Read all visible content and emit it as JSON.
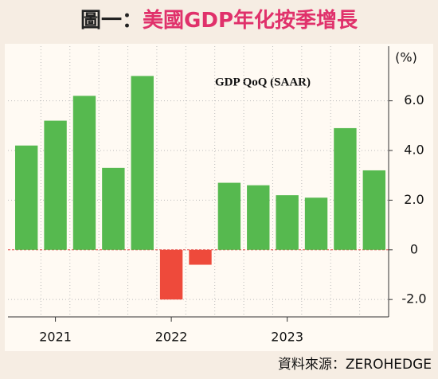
{
  "chart_data": {
    "type": "bar",
    "figure_label": "圖一：",
    "title": "美國GDP年化按季增長",
    "subtitle": "GDP QoQ (SAAR)",
    "y_unit": "(%)",
    "source": "資料來源：ZEROHEDGE",
    "categories": [
      null,
      "2021",
      null,
      null,
      null,
      "2022",
      null,
      null,
      null,
      "2023",
      null,
      null,
      null
    ],
    "values": [
      4.2,
      5.2,
      6.2,
      3.3,
      7.0,
      -2.0,
      -0.6,
      2.7,
      2.6,
      2.2,
      2.1,
      4.9,
      3.2
    ],
    "color": "#56b94f",
    "negative_color": "#ee4a3b",
    "ylim": [
      -2.7,
      8.2
    ],
    "yticks": [
      {
        "value": -2,
        "label": "-2.0"
      },
      0,
      {
        "value": 2,
        "label": "2.0"
      },
      {
        "value": 4,
        "label": "4.0"
      },
      {
        "value": 6,
        "label": "6.0"
      }
    ],
    "grid": true
  }
}
